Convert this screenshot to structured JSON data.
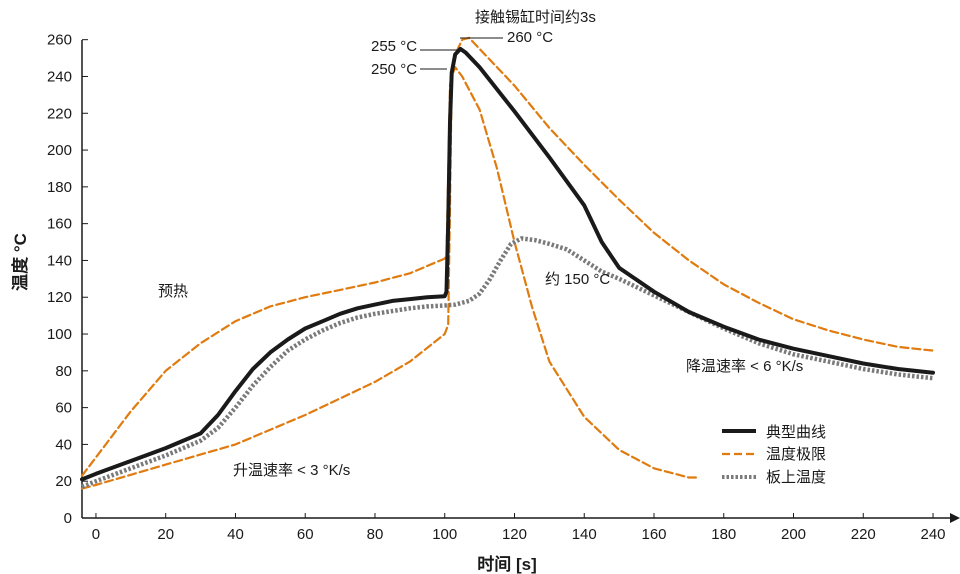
{
  "chart_data": {
    "type": "line",
    "title": "",
    "xlabel": "时间 [s]",
    "ylabel": "温度 °C",
    "xlim": [
      -4,
      242
    ],
    "ylim": [
      0,
      262
    ],
    "xticks": [
      0,
      20,
      40,
      60,
      80,
      100,
      120,
      140,
      160,
      180,
      200,
      220,
      240
    ],
    "yticks": [
      0,
      20,
      40,
      60,
      80,
      100,
      120,
      140,
      160,
      180,
      200,
      220,
      240,
      260
    ],
    "grid": false,
    "legend_position": "bottom-right",
    "colors": {
      "typical": "#1a1a1a",
      "limits": "#e07b10",
      "board": "#7a7a7a"
    },
    "legend": [
      {
        "label": "典型曲线",
        "style": "solid"
      },
      {
        "label": "温度极限",
        "style": "dashed"
      },
      {
        "label": "板上温度",
        "style": "dotted"
      }
    ],
    "annotations": {
      "contact": "接触锡缸时间约3s",
      "t260": "260 °C",
      "t255": "255 °C",
      "t250": "250 °C",
      "preheat": "预热",
      "about150": "约 150 °C",
      "ramp_up": "升温速率 < 3 °K/s",
      "ramp_down": "降温速率 < 6 °K/s"
    },
    "series": [
      {
        "name": "典型曲线",
        "style": "solid",
        "points": [
          [
            -4,
            21
          ],
          [
            0,
            24
          ],
          [
            10,
            31
          ],
          [
            20,
            38
          ],
          [
            30,
            46
          ],
          [
            35,
            56
          ],
          [
            40,
            69
          ],
          [
            45,
            81
          ],
          [
            50,
            90
          ],
          [
            55,
            97
          ],
          [
            60,
            103
          ],
          [
            65,
            107
          ],
          [
            70,
            111
          ],
          [
            75,
            114
          ],
          [
            80,
            116
          ],
          [
            85,
            118
          ],
          [
            90,
            119
          ],
          [
            95,
            120
          ],
          [
            100,
            120.5
          ],
          [
            100.5,
            123
          ],
          [
            101,
            160
          ],
          [
            101.5,
            215
          ],
          [
            102,
            242
          ],
          [
            103,
            252
          ],
          [
            104.5,
            255
          ],
          [
            106,
            253
          ],
          [
            110,
            245
          ],
          [
            120,
            221
          ],
          [
            130,
            196
          ],
          [
            140,
            170
          ],
          [
            145,
            150
          ],
          [
            150,
            136
          ],
          [
            160,
            123
          ],
          [
            170,
            112
          ],
          [
            180,
            104
          ],
          [
            190,
            97
          ],
          [
            200,
            92
          ],
          [
            210,
            88
          ],
          [
            220,
            84
          ],
          [
            230,
            81
          ],
          [
            240,
            79
          ]
        ]
      },
      {
        "name": "温度极限",
        "style": "dashed",
        "points": [
          [
            -4,
            23
          ],
          [
            0,
            33
          ],
          [
            10,
            58
          ],
          [
            20,
            80
          ],
          [
            30,
            95
          ],
          [
            40,
            107
          ],
          [
            50,
            115
          ],
          [
            60,
            120
          ],
          [
            70,
            124
          ],
          [
            80,
            128
          ],
          [
            90,
            133
          ],
          [
            100,
            141
          ],
          [
            100.5,
            143
          ],
          [
            101,
            185
          ],
          [
            101.5,
            235
          ],
          [
            103,
            252
          ],
          [
            105,
            260
          ],
          [
            107,
            261
          ],
          [
            110,
            255
          ],
          [
            120,
            235
          ],
          [
            130,
            212
          ],
          [
            140,
            192
          ],
          [
            150,
            173
          ],
          [
            160,
            155
          ],
          [
            170,
            140
          ],
          [
            180,
            127
          ],
          [
            190,
            117
          ],
          [
            200,
            108
          ],
          [
            210,
            102
          ],
          [
            220,
            97
          ],
          [
            230,
            93
          ],
          [
            240,
            91
          ]
        ]
      },
      {
        "name": "温度极限",
        "style": "dashed",
        "points": [
          [
            -4,
            16
          ],
          [
            0,
            18
          ],
          [
            20,
            29
          ],
          [
            40,
            40
          ],
          [
            60,
            56
          ],
          [
            80,
            74
          ],
          [
            90,
            85
          ],
          [
            100,
            100
          ],
          [
            101,
            105
          ],
          [
            101.5,
            170
          ],
          [
            102,
            240
          ],
          [
            103,
            245
          ],
          [
            105,
            240
          ],
          [
            110,
            222
          ],
          [
            115,
            190
          ],
          [
            120,
            150
          ],
          [
            125,
            115
          ],
          [
            130,
            85
          ],
          [
            140,
            55
          ],
          [
            150,
            37
          ],
          [
            160,
            27
          ],
          [
            170,
            22
          ],
          [
            172,
            22
          ]
        ]
      },
      {
        "name": "板上温度",
        "style": "dotted",
        "points": [
          [
            -4,
            17
          ],
          [
            0,
            20
          ],
          [
            10,
            27
          ],
          [
            20,
            34
          ],
          [
            30,
            42
          ],
          [
            35,
            49
          ],
          [
            40,
            60
          ],
          [
            45,
            72
          ],
          [
            50,
            82
          ],
          [
            55,
            91
          ],
          [
            60,
            97
          ],
          [
            65,
            102
          ],
          [
            70,
            106
          ],
          [
            75,
            109
          ],
          [
            80,
            111
          ],
          [
            90,
            114
          ],
          [
            95,
            115
          ],
          [
            100,
            115.5
          ],
          [
            103,
            116
          ],
          [
            107,
            118
          ],
          [
            110,
            122
          ],
          [
            113,
            130
          ],
          [
            116,
            140
          ],
          [
            119,
            149
          ],
          [
            122,
            152
          ],
          [
            126,
            151
          ],
          [
            130,
            149
          ],
          [
            135,
            146
          ],
          [
            140,
            140
          ],
          [
            145,
            134
          ],
          [
            150,
            130
          ],
          [
            160,
            121
          ],
          [
            170,
            112
          ],
          [
            180,
            103
          ],
          [
            190,
            95
          ],
          [
            200,
            89
          ],
          [
            210,
            85
          ],
          [
            220,
            81
          ],
          [
            230,
            78
          ],
          [
            240,
            76
          ]
        ]
      }
    ]
  }
}
